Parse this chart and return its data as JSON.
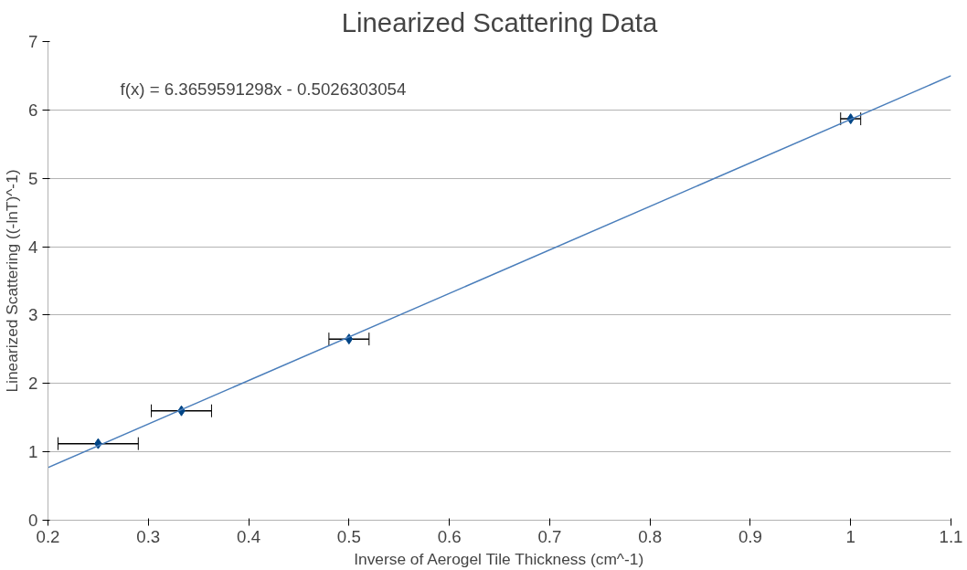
{
  "chart_data": {
    "type": "scatter",
    "title": "Linearized Scattering Data",
    "xlabel": "Inverse of Aerogel Tile Thickness (cm^-1)",
    "ylabel": "Linearized Scattering ((-lnT)^-1)",
    "xlim": [
      0.2,
      1.1
    ],
    "xticks": [
      0.2,
      0.3,
      0.4,
      0.5,
      0.6,
      0.7,
      0.8,
      0.9,
      1,
      1.1
    ],
    "ylim": [
      0,
      7
    ],
    "yticks": [
      0,
      1,
      2,
      3,
      4,
      5,
      6,
      7
    ],
    "grid": "y",
    "series": [
      {
        "marker": "diamond",
        "color": "#004586",
        "x": [
          0.25,
          0.333,
          0.5,
          1.0
        ],
        "values": [
          1.12,
          1.6,
          2.65,
          5.87
        ],
        "xerrors": [
          0.04,
          0.03,
          0.02,
          0.01
        ]
      },
      {
        "type": "line",
        "color": "#4a7ebb",
        "x": [
          0.2,
          1.1
        ],
        "values": [
          0.77,
          6.5
        ]
      }
    ],
    "annotations": [
      "f(x) = 6.3659591298x - 0.5026303054"
    ]
  }
}
